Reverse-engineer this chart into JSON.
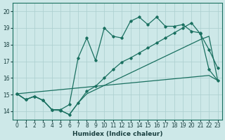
{
  "xlabel": "Humidex (Indice chaleur)",
  "background_color": "#cde8e8",
  "grid_color": "#aacece",
  "line_color": "#1a7060",
  "ylim": [
    13.5,
    20.5
  ],
  "xlim": [
    -0.5,
    23.5
  ],
  "yticks": [
    14,
    15,
    16,
    17,
    18,
    19,
    20
  ],
  "xticks": [
    0,
    1,
    2,
    3,
    4,
    5,
    6,
    7,
    8,
    9,
    10,
    11,
    12,
    13,
    14,
    15,
    16,
    17,
    18,
    19,
    20,
    21,
    22,
    23
  ],
  "line1_x": [
    0,
    1,
    2,
    3,
    4,
    5,
    6,
    7,
    8,
    9,
    10,
    11,
    12,
    13,
    14,
    15,
    16,
    17,
    18,
    19,
    20,
    21,
    22,
    23
  ],
  "line1_y": [
    15.05,
    15.1,
    15.15,
    15.2,
    15.25,
    15.3,
    15.35,
    15.4,
    15.45,
    15.5,
    15.55,
    15.6,
    15.65,
    15.7,
    15.75,
    15.8,
    15.85,
    15.9,
    15.95,
    16.0,
    16.05,
    16.1,
    16.15,
    15.85
  ],
  "line2_x": [
    0,
    1,
    2,
    3,
    4,
    5,
    6,
    7,
    8,
    9,
    10,
    11,
    12,
    13,
    14,
    15,
    16,
    17,
    18,
    19,
    20,
    21,
    22,
    23
  ],
  "line2_y": [
    15.05,
    14.7,
    14.9,
    14.65,
    14.1,
    14.05,
    13.8,
    14.5,
    15.05,
    15.3,
    15.55,
    15.8,
    16.05,
    16.3,
    16.55,
    16.8,
    17.05,
    17.3,
    17.55,
    17.8,
    18.05,
    18.3,
    18.5,
    15.85
  ],
  "line3_x": [
    0,
    1,
    2,
    3,
    4,
    5,
    6,
    7,
    8,
    9,
    10,
    11,
    12,
    13,
    14,
    15,
    16,
    17,
    18,
    19,
    20,
    21,
    22,
    23
  ],
  "line3_y": [
    15.05,
    14.7,
    14.9,
    14.65,
    14.1,
    14.05,
    13.8,
    14.5,
    15.2,
    15.5,
    16.0,
    16.5,
    16.95,
    17.2,
    17.5,
    17.8,
    18.1,
    18.4,
    18.7,
    19.0,
    19.3,
    18.65,
    17.7,
    16.6
  ],
  "line4_x": [
    0,
    1,
    2,
    3,
    4,
    5,
    6,
    7,
    8,
    9,
    10,
    11,
    12,
    13,
    14,
    15,
    16,
    17,
    18,
    19,
    20,
    21,
    22,
    23
  ],
  "line4_y": [
    15.05,
    14.7,
    14.9,
    14.65,
    14.1,
    14.1,
    14.4,
    17.2,
    18.4,
    17.05,
    19.0,
    18.5,
    18.4,
    19.4,
    19.65,
    19.2,
    19.65,
    19.1,
    19.1,
    19.2,
    18.8,
    18.7,
    16.5,
    15.85
  ]
}
